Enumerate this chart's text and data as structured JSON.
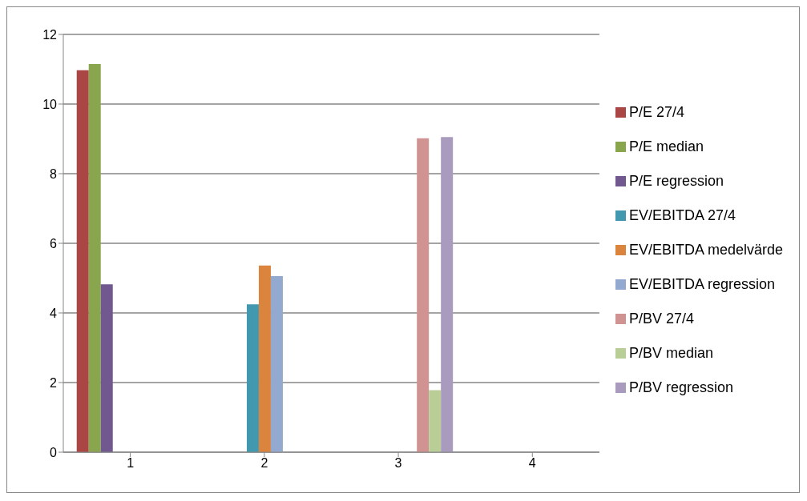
{
  "chart_data": {
    "type": "bar",
    "categories": [
      "1",
      "2",
      "3",
      "4"
    ],
    "series": [
      {
        "name": "P/E 27/4",
        "color": "#aa4643",
        "values": [
          10.97,
          null,
          null,
          null
        ]
      },
      {
        "name": "P/E median",
        "color": "#89a54e",
        "values": [
          11.15,
          null,
          null,
          null
        ]
      },
      {
        "name": "P/E regression",
        "color": "#71588f",
        "values": [
          4.82,
          null,
          null,
          null
        ]
      },
      {
        "name": "EV/EBITDA 27/4",
        "color": "#4198af",
        "values": [
          null,
          4.25,
          null,
          null
        ]
      },
      {
        "name": "EV/EBITDA medelvärde",
        "color": "#db843d",
        "values": [
          null,
          5.36,
          null,
          null
        ]
      },
      {
        "name": "EV/EBITDA regression",
        "color": "#93a9cf",
        "values": [
          null,
          5.06,
          null,
          null
        ]
      },
      {
        "name": "P/BV 27/4",
        "color": "#d19392",
        "values": [
          null,
          null,
          9.02,
          null
        ]
      },
      {
        "name": "P/BV median",
        "color": "#b9cd96",
        "values": [
          null,
          null,
          1.78,
          null
        ]
      },
      {
        "name": "P/BV regression",
        "color": "#a99bbd",
        "values": [
          null,
          null,
          9.05,
          null
        ]
      }
    ],
    "ylim": [
      0,
      12
    ],
    "yticks": [
      0,
      2,
      4,
      6,
      8,
      10,
      12
    ],
    "grid": "y",
    "legend": "right"
  }
}
